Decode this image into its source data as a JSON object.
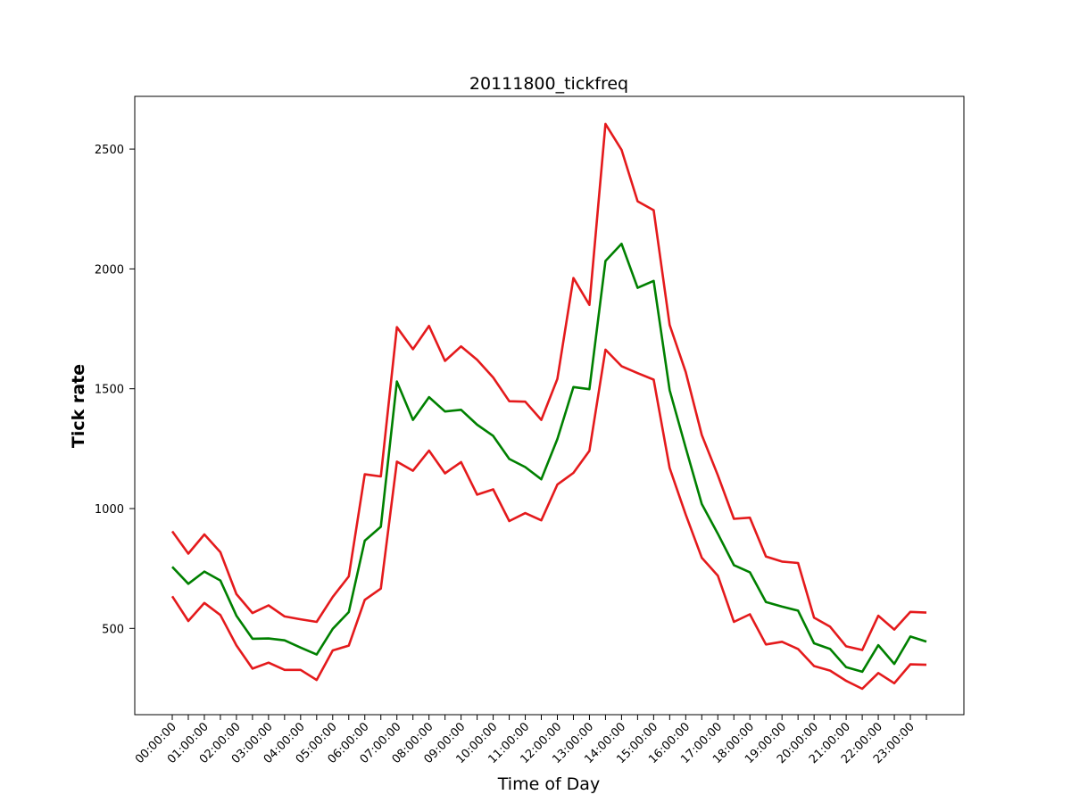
{
  "chart_data": {
    "type": "line",
    "title": "20111800_tickfreq",
    "xlabel": "Time of Day",
    "ylabel": "Tick rate",
    "ylim": [
      140,
      2720
    ],
    "yticks": [
      500,
      1000,
      1500,
      2000,
      2500
    ],
    "xtick_labels": [
      "00:00:00",
      "01:00:00",
      "02:00:00",
      "03:00:00",
      "04:00:00",
      "05:00:00",
      "06:00:00",
      "07:00:00",
      "08:00:00",
      "09:00:00",
      "10:00:00",
      "11:00:00",
      "12:00:00",
      "13:00:00",
      "14:00:00",
      "15:00:00",
      "16:00:00",
      "17:00:00",
      "18:00:00",
      "19:00:00",
      "20:00:00",
      "21:00:00",
      "22:00:00",
      "23:00:00"
    ],
    "x": [
      "00:00:00",
      "00:30:00",
      "01:00:00",
      "01:30:00",
      "02:00:00",
      "02:30:00",
      "03:00:00",
      "03:30:00",
      "04:00:00",
      "04:30:00",
      "05:00:00",
      "05:30:00",
      "06:00:00",
      "06:30:00",
      "07:00:00",
      "07:30:00",
      "08:00:00",
      "08:30:00",
      "09:00:00",
      "09:30:00",
      "10:00:00",
      "10:30:00",
      "11:00:00",
      "11:30:00",
      "12:00:00",
      "12:30:00",
      "13:00:00",
      "13:30:00",
      "14:00:00",
      "14:30:00",
      "15:00:00",
      "15:30:00",
      "16:00:00",
      "16:30:00",
      "17:00:00",
      "17:30:00",
      "18:00:00",
      "18:30:00",
      "19:00:00",
      "19:30:00",
      "20:00:00",
      "20:30:00",
      "21:00:00",
      "21:30:00",
      "22:00:00",
      "22:30:00",
      "23:00:00",
      "23:30:00"
    ],
    "grid": false,
    "legend": "none",
    "series": [
      {
        "color": "#e41a1c",
        "values": [
          905,
          812,
          892,
          818,
          643,
          564,
          596,
          550,
          538,
          527,
          631,
          717,
          1143,
          1134,
          1757,
          1665,
          1762,
          1616,
          1677,
          1621,
          1547,
          1448,
          1446,
          1370,
          1541,
          1962,
          1850,
          2605,
          2497,
          2282,
          2245,
          1766,
          1570,
          1307,
          1139,
          957,
          962,
          800,
          779,
          773,
          545,
          507,
          425,
          410,
          553,
          495,
          569,
          566
        ]
      },
      {
        "color": "#008000",
        "values": [
          757,
          686,
          737,
          700,
          553,
          457,
          458,
          450,
          420,
          391,
          498,
          568,
          866,
          924,
          1530,
          1370,
          1465,
          1405,
          1412,
          1350,
          1303,
          1207,
          1173,
          1122,
          1290,
          1507,
          1498,
          2033,
          2105,
          1921,
          1950,
          1494,
          1254,
          1019,
          895,
          764,
          734,
          610,
          591,
          574,
          438,
          414,
          338,
          319,
          430,
          352,
          466,
          445
        ]
      },
      {
        "color": "#e41a1c",
        "values": [
          634,
          531,
          606,
          556,
          429,
          332,
          357,
          327,
          327,
          285,
          408,
          428,
          619,
          666,
          1196,
          1158,
          1242,
          1147,
          1194,
          1058,
          1080,
          948,
          981,
          951,
          1100,
          1149,
          1241,
          1663,
          1594,
          1565,
          1538,
          1169,
          975,
          795,
          720,
          527,
          559,
          433,
          444,
          414,
          343,
          324,
          281,
          248,
          314,
          271,
          350,
          348
        ]
      }
    ]
  }
}
